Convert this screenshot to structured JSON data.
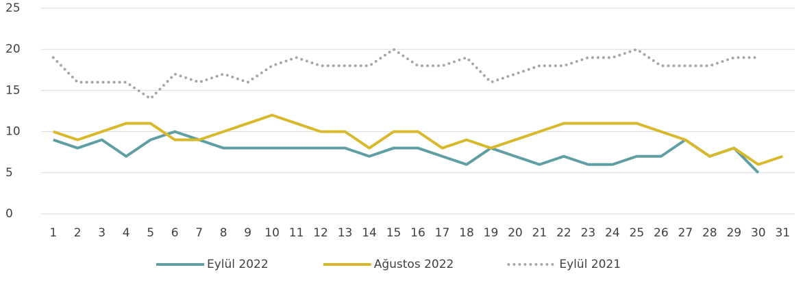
{
  "chart_data": {
    "type": "line",
    "categories": [
      "1",
      "2",
      "3",
      "4",
      "5",
      "6",
      "7",
      "8",
      "9",
      "10",
      "11",
      "12",
      "13",
      "14",
      "15",
      "16",
      "17",
      "18",
      "19",
      "20",
      "21",
      "22",
      "23",
      "24",
      "25",
      "26",
      "27",
      "28",
      "29",
      "30",
      "31"
    ],
    "series": [
      {
        "name": "Eylül 2022",
        "color": "#5f9ea3",
        "dash": "solid",
        "values": [
          9,
          8,
          9,
          7,
          9,
          10,
          9,
          8,
          8,
          8,
          8,
          8,
          8,
          7,
          8,
          8,
          7,
          6,
          8,
          7,
          6,
          7,
          6,
          6,
          7,
          7,
          9,
          7,
          8,
          5,
          null
        ]
      },
      {
        "name": "Ağustos 2022",
        "color": "#d8b92c",
        "dash": "solid",
        "values": [
          10,
          9,
          10,
          11,
          11,
          9,
          9,
          10,
          11,
          12,
          11,
          10,
          10,
          8,
          10,
          10,
          8,
          9,
          8,
          9,
          10,
          11,
          11,
          11,
          11,
          10,
          9,
          7,
          8,
          6,
          7
        ]
      },
      {
        "name": "Eylül 2021",
        "color": "#a6a6a6",
        "dash": "dotted",
        "values": [
          19,
          16,
          16,
          16,
          14,
          17,
          16,
          17,
          16,
          18,
          19,
          18,
          18,
          18,
          20,
          18,
          18,
          19,
          16,
          17,
          18,
          18,
          19,
          19,
          20,
          18,
          18,
          18,
          19,
          19,
          null
        ]
      }
    ],
    "ylim": [
      0,
      25
    ],
    "yticks": [
      0,
      5,
      10,
      15,
      20,
      25
    ],
    "grid": true,
    "legend": "bottom"
  }
}
